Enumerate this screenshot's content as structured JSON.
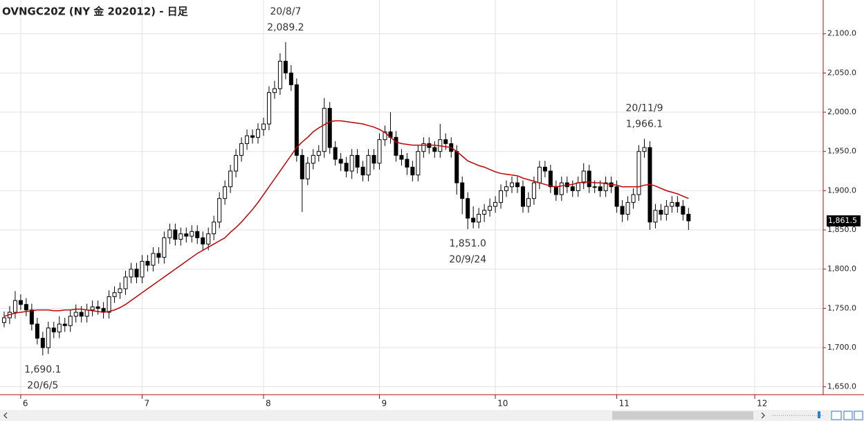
{
  "chart_data": {
    "type": "candlestick",
    "title": "OVNGC20Z (NY 金 202012) - 日足",
    "ylim": [
      1640,
      2143
    ],
    "xlim": [
      -0.75,
      148.4
    ],
    "yticks": [
      {
        "value": 1650,
        "label": "1,650.0"
      },
      {
        "value": 1700,
        "label": "1,700.0"
      },
      {
        "value": 1750,
        "label": "1,750.0"
      },
      {
        "value": 1800,
        "label": "1,800.0"
      },
      {
        "value": 1850,
        "label": "1,850.0"
      },
      {
        "value": 1900,
        "label": "1,900.0"
      },
      {
        "value": 1950,
        "label": "1,950.0"
      },
      {
        "value": 2000,
        "label": "2,000.0"
      },
      {
        "value": 2050,
        "label": "2,050.0"
      },
      {
        "value": 2100,
        "label": "2,100.0"
      }
    ],
    "xticks": [
      {
        "value": 3,
        "label": "6"
      },
      {
        "value": 25,
        "label": "7"
      },
      {
        "value": 47,
        "label": "8"
      },
      {
        "value": 68,
        "label": "9"
      },
      {
        "value": 89,
        "label": "10"
      },
      {
        "value": 111,
        "label": "11"
      },
      {
        "value": 136,
        "label": "12"
      }
    ],
    "grid": true,
    "up_color": "#ffffff",
    "down_color": "#000000",
    "open": [
      1732,
      1738,
      1745,
      1760,
      1755,
      1748,
      1730,
      1712,
      1700,
      1725,
      1720,
      1730,
      1728,
      1740,
      1745,
      1740,
      1748,
      1752,
      1750,
      1745,
      1765,
      1770,
      1775,
      1790,
      1800,
      1790,
      1810,
      1805,
      1820,
      1815,
      1840,
      1850,
      1838,
      1845,
      1842,
      1848,
      1840,
      1832,
      1845,
      1860,
      1890,
      1905,
      1925,
      1945,
      1960,
      1970,
      1968,
      1978,
      1985,
      2025,
      2030,
      2065,
      2050,
      2035,
      1945,
      1915,
      1935,
      1945,
      1950,
      2005,
      1955,
      1940,
      1935,
      1925,
      1945,
      1930,
      1920,
      1945,
      1935,
      1965,
      1975,
      1968,
      1945,
      1940,
      1930,
      1920,
      1950,
      1960,
      1955,
      1950,
      1965,
      1960,
      1950,
      1910,
      1890,
      1865,
      1860,
      1870,
      1875,
      1880,
      1885,
      1900,
      1905,
      1910,
      1905,
      1880,
      1890,
      1910,
      1930,
      1925,
      1905,
      1895,
      1910,
      1905,
      1900,
      1910,
      1925,
      1905,
      1905,
      1900,
      1910,
      1905,
      1880,
      1870,
      1885,
      1895,
      1950,
      1955,
      1860,
      1875,
      1870,
      1880,
      1885,
      1880,
      1870
    ],
    "high": [
      1746,
      1753,
      1772,
      1768,
      1763,
      1756,
      1738,
      1720,
      1733,
      1733,
      1740,
      1738,
      1748,
      1755,
      1753,
      1756,
      1760,
      1760,
      1758,
      1773,
      1778,
      1783,
      1798,
      1808,
      1808,
      1818,
      1818,
      1828,
      1828,
      1848,
      1858,
      1858,
      1853,
      1853,
      1856,
      1856,
      1848,
      1853,
      1868,
      1898,
      1913,
      1933,
      1953,
      1968,
      1978,
      1978,
      1986,
      1993,
      2033,
      2040,
      2075,
      2089.2,
      2060,
      2043,
      1953,
      1943,
      1953,
      1958,
      2018,
      2013,
      1963,
      1948,
      1943,
      1953,
      1953,
      1938,
      1953,
      1953,
      1973,
      1983,
      2000,
      1976,
      1953,
      1948,
      1938,
      1958,
      1968,
      1968,
      1963,
      1985,
      1973,
      1968,
      1958,
      1918,
      1898,
      1880,
      1878,
      1883,
      1890,
      1893,
      1908,
      1913,
      1918,
      1918,
      1913,
      1898,
      1918,
      1938,
      1938,
      1933,
      1913,
      1918,
      1918,
      1913,
      1918,
      1935,
      1933,
      1913,
      1913,
      1918,
      1918,
      1913,
      1888,
      1893,
      1903,
      1958,
      1966.1,
      1963,
      1883,
      1883,
      1888,
      1893,
      1893,
      1888,
      1878
    ],
    "low": [
      1726,
      1730,
      1737,
      1748,
      1740,
      1722,
      1704,
      1690.1,
      1692,
      1712,
      1712,
      1720,
      1720,
      1732,
      1732,
      1732,
      1740,
      1742,
      1737,
      1737,
      1757,
      1762,
      1767,
      1782,
      1782,
      1782,
      1797,
      1797,
      1807,
      1807,
      1832,
      1830,
      1830,
      1834,
      1834,
      1832,
      1824,
      1824,
      1837,
      1852,
      1882,
      1897,
      1917,
      1937,
      1952,
      1960,
      1960,
      1970,
      1977,
      2017,
      2022,
      2042,
      2027,
      1937,
      1873,
      1907,
      1927,
      1937,
      1942,
      1947,
      1932,
      1925,
      1917,
      1915,
      1922,
      1912,
      1912,
      1927,
      1927,
      1957,
      1960,
      1937,
      1932,
      1920,
      1912,
      1912,
      1942,
      1947,
      1942,
      1942,
      1952,
      1942,
      1895,
      1870,
      1851.0,
      1852,
      1852,
      1860,
      1867,
      1872,
      1877,
      1892,
      1897,
      1897,
      1872,
      1872,
      1882,
      1902,
      1917,
      1897,
      1887,
      1887,
      1897,
      1892,
      1892,
      1902,
      1897,
      1897,
      1892,
      1892,
      1897,
      1872,
      1860,
      1862,
      1877,
      1887,
      1942,
      1850,
      1852,
      1862,
      1862,
      1872,
      1872,
      1862,
      1850
    ],
    "close": [
      1738,
      1745,
      1760,
      1755,
      1748,
      1730,
      1712,
      1700,
      1725,
      1720,
      1730,
      1728,
      1740,
      1745,
      1740,
      1748,
      1752,
      1750,
      1745,
      1765,
      1770,
      1775,
      1790,
      1800,
      1790,
      1810,
      1805,
      1820,
      1815,
      1840,
      1850,
      1838,
      1845,
      1842,
      1848,
      1840,
      1832,
      1845,
      1860,
      1890,
      1905,
      1925,
      1945,
      1960,
      1970,
      1968,
      1978,
      1985,
      2025,
      2030,
      2065,
      2050,
      2035,
      1945,
      1915,
      1935,
      1945,
      1950,
      2005,
      1955,
      1940,
      1935,
      1925,
      1945,
      1930,
      1920,
      1945,
      1935,
      1965,
      1975,
      1968,
      1945,
      1940,
      1930,
      1920,
      1950,
      1960,
      1955,
      1950,
      1965,
      1960,
      1950,
      1910,
      1890,
      1865,
      1860,
      1870,
      1875,
      1880,
      1885,
      1900,
      1905,
      1910,
      1905,
      1880,
      1890,
      1910,
      1930,
      1925,
      1905,
      1895,
      1910,
      1905,
      1900,
      1910,
      1925,
      1905,
      1905,
      1900,
      1910,
      1905,
      1880,
      1870,
      1885,
      1895,
      1950,
      1955,
      1860,
      1875,
      1870,
      1880,
      1885,
      1880,
      1870,
      1861.5
    ],
    "last_label": "1,861.5",
    "ma": {
      "color": "#c00000",
      "values": [
        1740,
        1742,
        1744,
        1745,
        1746,
        1747,
        1748,
        1748,
        1748,
        1747,
        1747,
        1748,
        1748,
        1749,
        1749,
        1748,
        1747,
        1746,
        1745,
        1746,
        1748,
        1751,
        1755,
        1760,
        1765,
        1770,
        1775,
        1780,
        1785,
        1790,
        1795,
        1800,
        1805,
        1810,
        1815,
        1820,
        1824,
        1828,
        1832,
        1836,
        1840,
        1847,
        1853,
        1860,
        1868,
        1876,
        1885,
        1895,
        1905,
        1915,
        1925,
        1935,
        1945,
        1955,
        1962,
        1968,
        1975,
        1980,
        1984,
        1988,
        1989,
        1989,
        1988,
        1987,
        1986,
        1985,
        1983,
        1981,
        1978,
        1974,
        1968,
        1962,
        1960,
        1959,
        1958,
        1958,
        1958,
        1958,
        1958,
        1957,
        1956,
        1955,
        1950,
        1944,
        1938,
        1935,
        1932,
        1930,
        1927,
        1924,
        1922,
        1921,
        1920,
        1919,
        1916,
        1914,
        1912,
        1910,
        1908,
        1906,
        1905,
        1906,
        1907,
        1908,
        1910,
        1911,
        1911,
        1910,
        1910,
        1909,
        1908,
        1907,
        1905,
        1905,
        1905,
        1905,
        1907,
        1908,
        1906,
        1903,
        1900,
        1898,
        1896,
        1893,
        1890
      ]
    },
    "annotations": {
      "highs": [
        {
          "index": 51,
          "date": "20/8/7",
          "label": "2,089.2"
        },
        {
          "index": 116,
          "date": "20/11/9",
          "label": "1,966.1"
        }
      ],
      "lows": [
        {
          "index": 7,
          "date": "20/6/5",
          "label": "1,690.1"
        },
        {
          "index": 84,
          "date": "20/9/24",
          "label": "1,851.0"
        }
      ]
    }
  }
}
